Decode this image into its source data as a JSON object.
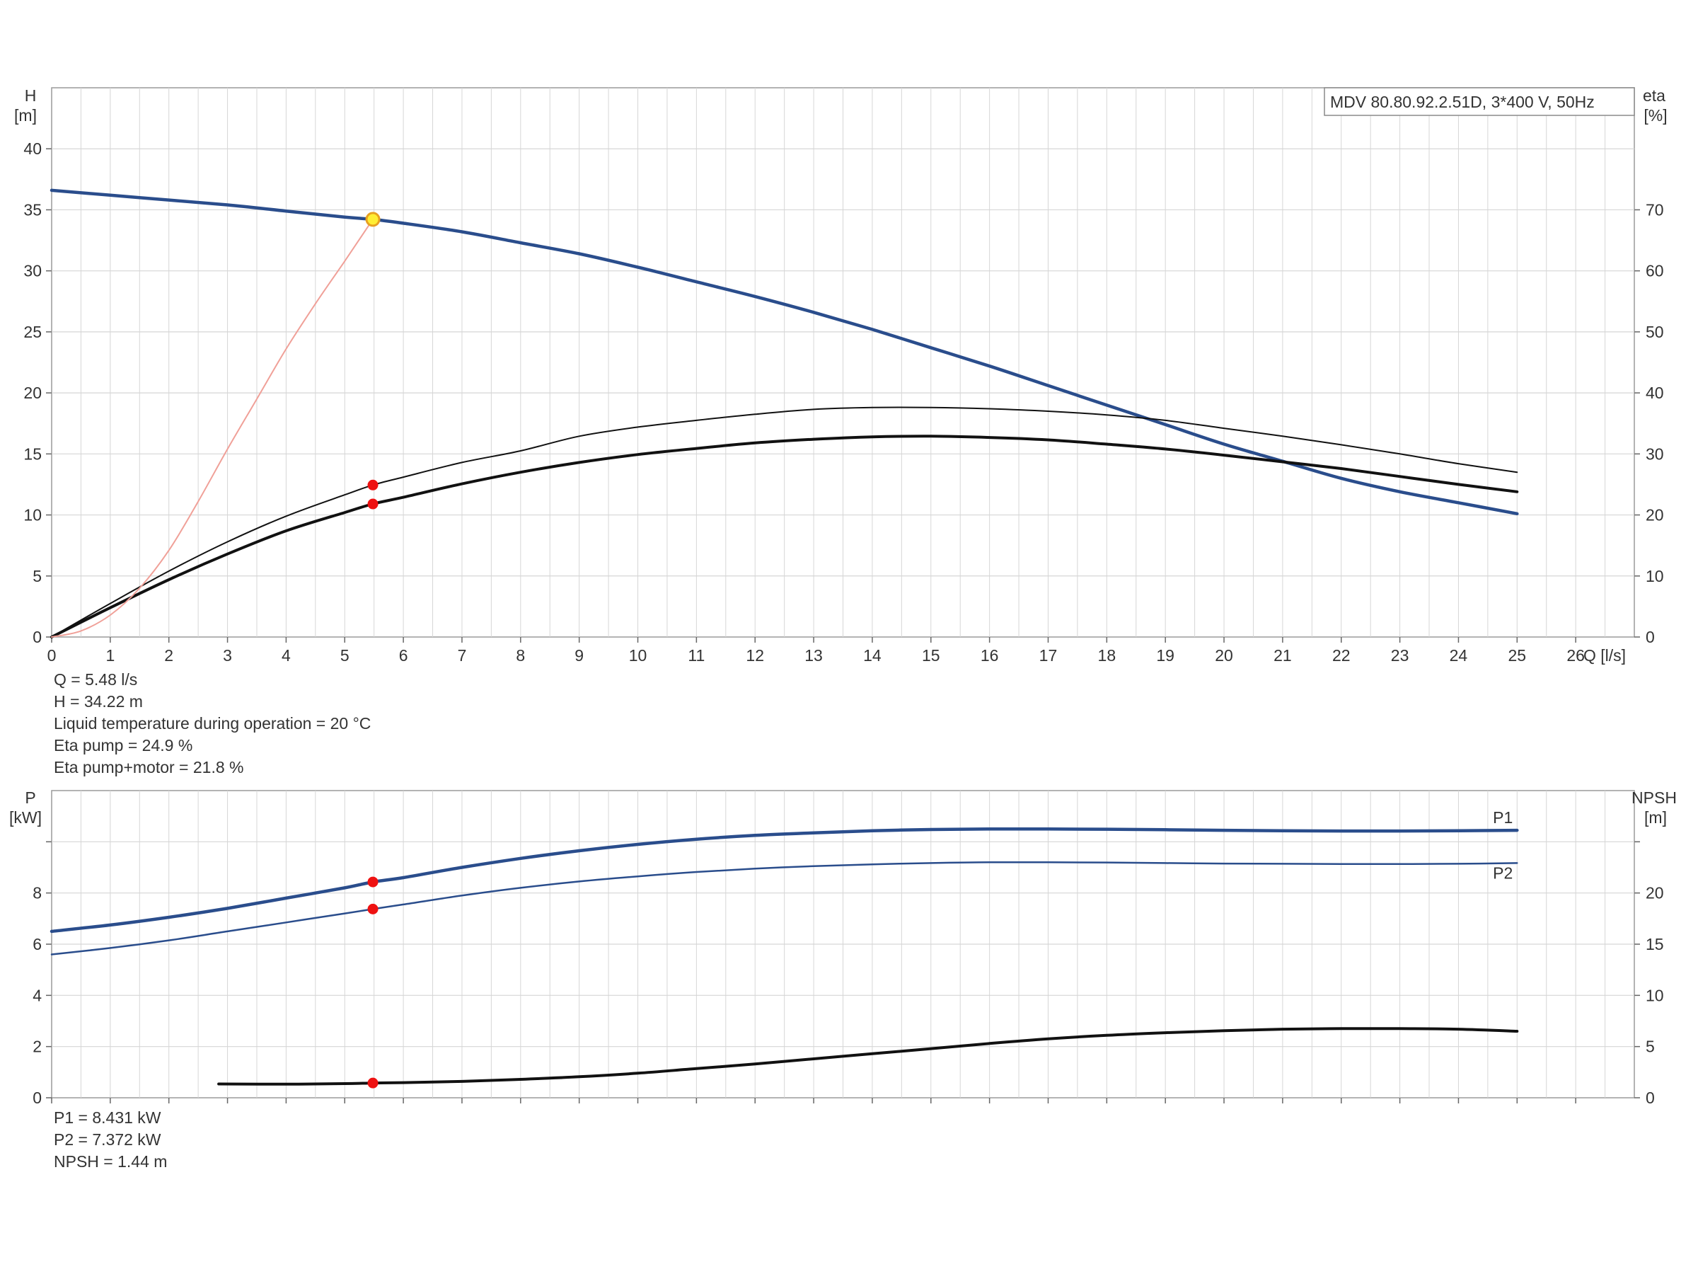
{
  "colors": {
    "head_curve": "#2a4d8c",
    "power_curve": "#2a4d8c",
    "eta_curve": "#111111",
    "system_curve": "#f0a098",
    "operating_point": "#ee1111",
    "duty_point_fill": "#ffee33",
    "grid": "#d6d6d6"
  },
  "chart_data": [
    {
      "type": "line",
      "title": "MDV 80.80.92.2.51D, 3*400 V, 50Hz",
      "x_axis": {
        "label": "Q [l/s]",
        "range": [
          0,
          27
        ],
        "ticks": [
          0,
          1,
          2,
          3,
          4,
          5,
          6,
          7,
          8,
          9,
          10,
          11,
          12,
          13,
          14,
          15,
          16,
          17,
          18,
          19,
          20,
          21,
          22,
          23,
          24,
          25,
          26
        ]
      },
      "y_left": {
        "label_top": "H",
        "label_unit": "[m]",
        "range": [
          0,
          45
        ],
        "ticks": [
          0,
          5,
          10,
          15,
          20,
          25,
          30,
          35,
          40
        ]
      },
      "y_right": {
        "label_top": "eta",
        "label_unit": "[%]",
        "range": [
          0,
          90
        ],
        "ticks": [
          0,
          10,
          20,
          30,
          40,
          50,
          60,
          70
        ]
      },
      "grid": true,
      "series": [
        {
          "key": "head",
          "axis": "left",
          "style": "thick-blue",
          "x": [
            0,
            1,
            2,
            3,
            4,
            5,
            5.48,
            6,
            7,
            8,
            9,
            10,
            11,
            12,
            13,
            14,
            15,
            16,
            17,
            18,
            19,
            20,
            21,
            22,
            23,
            24,
            25
          ],
          "y": [
            36.6,
            36.2,
            35.8,
            35.4,
            34.9,
            34.4,
            34.22,
            33.9,
            33.2,
            32.3,
            31.4,
            30.3,
            29.1,
            27.9,
            26.6,
            25.2,
            23.7,
            22.2,
            20.6,
            19.0,
            17.4,
            15.8,
            14.4,
            13.0,
            11.9,
            11.0,
            10.1
          ]
        },
        {
          "key": "eta_pump",
          "axis": "right",
          "style": "thin-black",
          "x": [
            0,
            1,
            2,
            3,
            4,
            5,
            5.48,
            6,
            7,
            8,
            9,
            10,
            11,
            12,
            13,
            14,
            15,
            16,
            17,
            18,
            19,
            20,
            21,
            22,
            23,
            24,
            25
          ],
          "y": [
            0,
            5.5,
            10.8,
            15.6,
            19.8,
            23.3,
            24.9,
            26.2,
            28.6,
            30.5,
            32.9,
            34.4,
            35.5,
            36.5,
            37.3,
            37.6,
            37.6,
            37.4,
            37.0,
            36.4,
            35.5,
            34.2,
            32.9,
            31.5,
            30.0,
            28.4,
            27.0
          ]
        },
        {
          "key": "eta_pump_motor",
          "axis": "right",
          "style": "thick-black",
          "x": [
            0,
            1,
            2,
            3,
            4,
            5,
            5.48,
            6,
            7,
            8,
            9,
            10,
            11,
            12,
            13,
            14,
            15,
            16,
            17,
            18,
            19,
            20,
            21,
            22,
            23,
            24,
            25
          ],
          "y": [
            0,
            4.8,
            9.4,
            13.6,
            17.4,
            20.4,
            21.8,
            22.9,
            25.1,
            27.0,
            28.6,
            29.9,
            30.9,
            31.8,
            32.4,
            32.8,
            32.9,
            32.7,
            32.3,
            31.6,
            30.8,
            29.8,
            28.7,
            27.6,
            26.3,
            25.0,
            23.8
          ]
        },
        {
          "key": "system_curve",
          "axis": "left",
          "style": "thin-red",
          "x": [
            0,
            0.5,
            1,
            1.5,
            2,
            2.5,
            3,
            3.5,
            4,
            4.5,
            5,
            5.48
          ],
          "y": [
            0,
            0.5,
            1.8,
            4.0,
            7.1,
            11.1,
            15.4,
            19.5,
            23.6,
            27.3,
            30.8,
            34.22
          ]
        }
      ],
      "operating_points": [
        {
          "axis": "left",
          "x": 5.48,
          "y": 34.22,
          "style": "duty"
        },
        {
          "axis": "right",
          "x": 5.48,
          "y": 24.9,
          "style": "red"
        },
        {
          "axis": "right",
          "x": 5.48,
          "y": 21.8,
          "style": "red"
        }
      ]
    },
    {
      "type": "line",
      "x_axis": {
        "range": [
          0,
          27
        ],
        "ticks": [
          0,
          1,
          2,
          3,
          4,
          5,
          6,
          7,
          8,
          9,
          10,
          11,
          12,
          13,
          14,
          15,
          16,
          17,
          18,
          19,
          20,
          21,
          22,
          23,
          24,
          25,
          26
        ]
      },
      "y_left": {
        "label_top": "P",
        "label_unit": "[kW]",
        "range": [
          0,
          12
        ],
        "ticks": [
          0,
          2,
          4,
          6,
          8
        ],
        "unlabeled_ticks": [
          10
        ]
      },
      "y_right": {
        "label_top": "NPSH",
        "label_unit": "[m]",
        "range": [
          0,
          30
        ],
        "ticks": [
          0,
          5,
          10,
          15,
          20
        ],
        "unlabeled_ticks": [
          25
        ]
      },
      "grid": true,
      "series": [
        {
          "key": "p1",
          "name": "P1",
          "axis": "left",
          "style": "thick-blue",
          "x": [
            0,
            1,
            2,
            3,
            4,
            5,
            5.48,
            6,
            7,
            8,
            9,
            10,
            11,
            12,
            13,
            14,
            15,
            16,
            17,
            18,
            19,
            20,
            21,
            22,
            23,
            24,
            25
          ],
          "y": [
            6.5,
            6.75,
            7.05,
            7.4,
            7.8,
            8.2,
            8.431,
            8.6,
            9.0,
            9.35,
            9.65,
            9.9,
            10.1,
            10.25,
            10.35,
            10.43,
            10.48,
            10.5,
            10.5,
            10.49,
            10.47,
            10.45,
            10.43,
            10.42,
            10.42,
            10.43,
            10.45
          ]
        },
        {
          "key": "p2",
          "name": "P2",
          "axis": "left",
          "style": "thin-blue",
          "x": [
            0,
            1,
            2,
            3,
            4,
            5,
            5.48,
            6,
            7,
            8,
            9,
            10,
            11,
            12,
            13,
            14,
            15,
            16,
            17,
            18,
            19,
            20,
            21,
            22,
            23,
            24,
            25
          ],
          "y": [
            5.6,
            5.85,
            6.15,
            6.5,
            6.85,
            7.2,
            7.372,
            7.55,
            7.9,
            8.2,
            8.45,
            8.65,
            8.82,
            8.95,
            9.05,
            9.12,
            9.17,
            9.2,
            9.2,
            9.19,
            9.17,
            9.15,
            9.14,
            9.13,
            9.13,
            9.14,
            9.17
          ]
        },
        {
          "key": "npsh",
          "axis": "right",
          "style": "thick-black",
          "x": [
            2.85,
            4,
            5,
            5.48,
            6,
            7,
            8,
            9,
            10,
            11,
            12,
            13,
            14,
            15,
            16,
            17,
            18,
            19,
            20,
            21,
            22,
            23,
            24,
            25
          ],
          "y": [
            1.35,
            1.33,
            1.38,
            1.44,
            1.48,
            1.6,
            1.8,
            2.05,
            2.4,
            2.85,
            3.3,
            3.8,
            4.3,
            4.8,
            5.3,
            5.75,
            6.1,
            6.35,
            6.55,
            6.7,
            6.75,
            6.75,
            6.7,
            6.5
          ]
        }
      ],
      "operating_points": [
        {
          "axis": "left",
          "x": 5.48,
          "y": 8.431,
          "style": "red"
        },
        {
          "axis": "left",
          "x": 5.48,
          "y": 7.372,
          "style": "red"
        },
        {
          "axis": "right",
          "x": 5.48,
          "y": 1.44,
          "style": "red"
        }
      ]
    }
  ],
  "info_top": [
    "Q = 5.48 l/s",
    "H = 34.22 m",
    "Liquid temperature during operation = 20 °C",
    "Eta pump = 24.9 %",
    "Eta pump+motor = 21.8 %"
  ],
  "info_bottom": [
    "P1 = 8.431 kW",
    "P2 = 7.372 kW",
    "NPSH = 1.44 m"
  ]
}
